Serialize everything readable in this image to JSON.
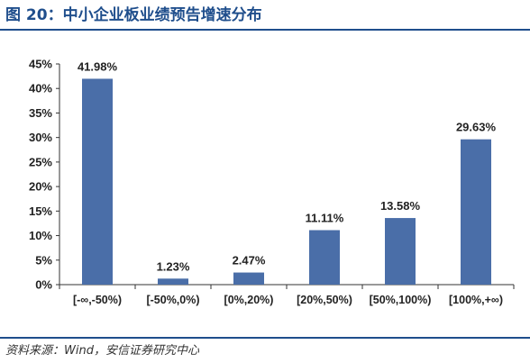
{
  "figure": {
    "title": "图 20：中小企业板业绩预告增速分布",
    "source": "资料来源：Wind，安信证券研究中心"
  },
  "chart_data": {
    "type": "bar",
    "title": "",
    "xlabel": "",
    "ylabel": "",
    "categories": [
      "[-∞,-50%)",
      "[-50%,0%)",
      "[0%,20%)",
      "[20%,50%)",
      "[50%,100%)",
      "[100%,+∞)"
    ],
    "values": [
      41.98,
      1.23,
      2.47,
      11.11,
      13.58,
      29.63
    ],
    "value_labels": [
      "41.98%",
      "1.23%",
      "2.47%",
      "11.11%",
      "13.58%",
      "29.63%"
    ],
    "y_ticks": [
      "0%",
      "5%",
      "10%",
      "15%",
      "20%",
      "25%",
      "30%",
      "35%",
      "40%",
      "45%"
    ],
    "ylim": [
      0,
      45
    ],
    "grid": false,
    "legend": "none",
    "bar_color": "#4a6ea8"
  }
}
